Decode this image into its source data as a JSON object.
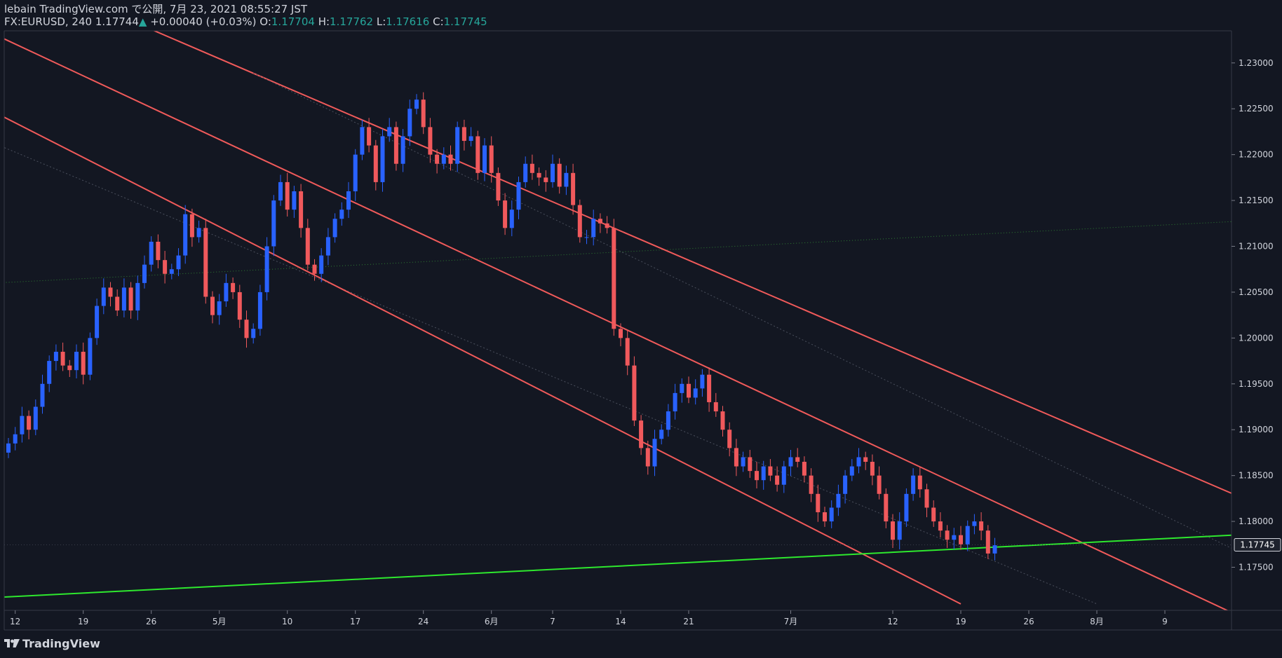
{
  "header": {
    "publisher_line": "lebain TradingView.com で公開, 7月 23, 2021 08:55:27 JST",
    "symbol": "FX:EURUSD, 240",
    "last": "1.17744",
    "change": "+0.00040 (+0.03%)",
    "o_label": "O:",
    "o_value": "1.17704",
    "h_label": "H:",
    "h_value": "1.17762",
    "l_label": "L:",
    "l_value": "1.17616",
    "c_label": "C:",
    "c_value": "1.17745"
  },
  "brand": {
    "logo_text": "TradingView",
    "logo_icon": "tradingview-logo-icon"
  },
  "colors": {
    "background": "#131722",
    "candle_up": "#2962ff",
    "candle_down": "#f0595c",
    "channel_line": "#f05a5a",
    "support_line": "#2ee82e",
    "axis_text": "#d1d4dc",
    "price_up": "#26a69a"
  },
  "chart_data": {
    "type": "candlestick",
    "symbol": "FX:EURUSD",
    "interval": "240",
    "current_price_label": "1.17745",
    "y_axis": {
      "ticks": [
        "1.23000",
        "1.22500",
        "1.22000",
        "1.21500",
        "1.21000",
        "1.20500",
        "1.20000",
        "1.19500",
        "1.19000",
        "1.18500",
        "1.18000",
        "1.17500"
      ],
      "range": [
        1.1703,
        1.2335
      ]
    },
    "x_axis": {
      "ticks": [
        {
          "label": "12",
          "idx": 1
        },
        {
          "label": "19",
          "idx": 11
        },
        {
          "label": "26",
          "idx": 21
        },
        {
          "label": "5月",
          "idx": 31
        },
        {
          "label": "10",
          "idx": 41
        },
        {
          "label": "17",
          "idx": 51
        },
        {
          "label": "24",
          "idx": 61
        },
        {
          "label": "6月",
          "idx": 71
        },
        {
          "label": "7",
          "idx": 80
        },
        {
          "label": "14",
          "idx": 90
        },
        {
          "label": "21",
          "idx": 100
        },
        {
          "label": "7月",
          "idx": 115
        },
        {
          "label": "12",
          "idx": 130
        },
        {
          "label": "19",
          "idx": 140
        },
        {
          "label": "26",
          "idx": 150
        },
        {
          "label": "8月",
          "idx": 160
        },
        {
          "label": "9",
          "idx": 170
        }
      ]
    },
    "closes": [
      1.1885,
      1.1895,
      1.1915,
      1.19,
      1.1925,
      1.195,
      1.1975,
      1.1985,
      1.197,
      1.1965,
      1.1985,
      1.196,
      1.2,
      1.2035,
      1.2055,
      1.2045,
      1.203,
      1.2055,
      1.203,
      1.206,
      1.208,
      1.2105,
      1.2085,
      1.207,
      1.2075,
      1.209,
      1.2135,
      1.211,
      1.212,
      1.2045,
      1.2025,
      1.204,
      1.206,
      1.205,
      1.202,
      1.2,
      1.201,
      1.205,
      1.21,
      1.215,
      1.217,
      1.214,
      1.216,
      1.212,
      1.208,
      1.207,
      1.209,
      1.211,
      1.213,
      1.214,
      1.216,
      1.22,
      1.223,
      1.221,
      1.217,
      1.222,
      1.223,
      1.219,
      1.222,
      1.225,
      1.226,
      1.223,
      1.22,
      1.219,
      1.22,
      1.219,
      1.223,
      1.2215,
      1.222,
      1.218,
      1.221,
      1.218,
      1.215,
      1.212,
      1.214,
      1.217,
      1.219,
      1.218,
      1.2175,
      1.217,
      1.219,
      1.2165,
      1.218,
      1.2145,
      1.211,
      1.211,
      1.213,
      1.2125,
      1.212,
      1.201,
      1.2,
      1.197,
      1.191,
      1.188,
      1.186,
      1.189,
      1.19,
      1.192,
      1.194,
      1.195,
      1.1935,
      1.1945,
      1.196,
      1.193,
      1.192,
      1.19,
      1.188,
      1.186,
      1.187,
      1.1855,
      1.1845,
      1.186,
      1.185,
      1.184,
      1.186,
      1.187,
      1.1865,
      1.185,
      1.183,
      1.181,
      1.18,
      1.1815,
      1.183,
      1.185,
      1.186,
      1.187,
      1.1865,
      1.185,
      1.183,
      1.18,
      1.178,
      1.18,
      1.183,
      1.185,
      1.1835,
      1.1815,
      1.18,
      1.179,
      1.178,
      1.1785,
      1.1775,
      1.1795,
      1.18,
      1.179,
      1.1765,
      1.1774
    ],
    "channel_lines": [
      {
        "name": "upper",
        "start": {
          "idx": 13,
          "price": 1.2362
        },
        "end": {
          "idx": 180,
          "price": 1.183
        }
      },
      {
        "name": "upper-mid-guide",
        "start": {
          "idx": 36,
          "price": 1.2289
        },
        "end": {
          "idx": 180,
          "price": 1.177
        },
        "dashed": true
      },
      {
        "name": "middle",
        "start": {
          "idx": -2,
          "price": 1.2331
        },
        "end": {
          "idx": 180,
          "price": 1.17
        }
      },
      {
        "name": "lower-mid-guide",
        "start": {
          "idx": -2,
          "price": 1.2212
        },
        "end": {
          "idx": 160,
          "price": 1.171
        },
        "dashed": true
      },
      {
        "name": "lower",
        "start": {
          "idx": -2,
          "price": 1.2246
        },
        "end": {
          "idx": 140,
          "price": 1.171
        }
      }
    ],
    "support_line": {
      "start": {
        "idx": -2,
        "price": 1.1717
      },
      "end": {
        "idx": 180,
        "price": 1.1785
      }
    },
    "dotted_line": {
      "start": {
        "idx": -2,
        "price": 1.206
      },
      "end": {
        "idx": 180,
        "price": 1.2127
      }
    }
  }
}
